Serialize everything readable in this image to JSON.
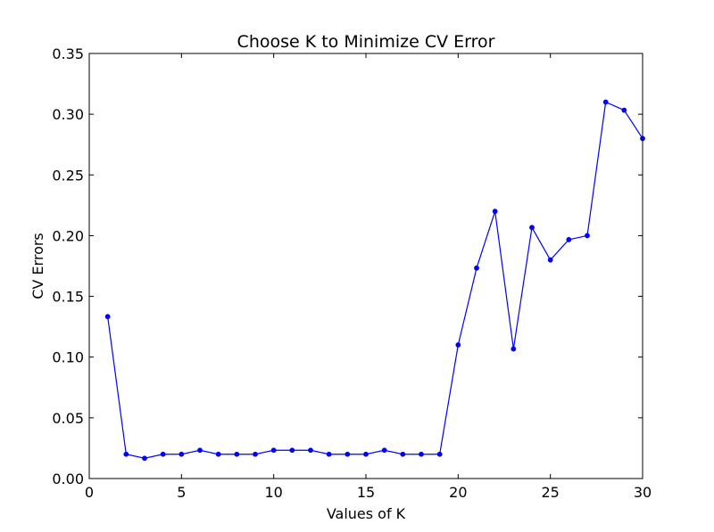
{
  "chart_data": {
    "type": "line",
    "title": "Choose K to Minimize CV Error",
    "xlabel": "Values of K",
    "ylabel": "CV Errors",
    "xlim": [
      0,
      30
    ],
    "ylim": [
      0.0,
      0.35
    ],
    "xticks": [
      0,
      5,
      10,
      15,
      20,
      25,
      30
    ],
    "xtick_labels": [
      "0",
      "5",
      "10",
      "15",
      "20",
      "25",
      "30"
    ],
    "yticks": [
      0.0,
      0.05,
      0.1,
      0.15,
      0.2,
      0.25,
      0.3,
      0.35
    ],
    "ytick_labels": [
      "0.00",
      "0.05",
      "0.10",
      "0.15",
      "0.20",
      "0.25",
      "0.30",
      "0.35"
    ],
    "grid": false,
    "legend": "none",
    "series": [
      {
        "color": "#0000ff",
        "x": [
          1,
          2,
          3,
          4,
          5,
          6,
          7,
          8,
          9,
          10,
          11,
          12,
          13,
          14,
          15,
          16,
          17,
          18,
          19,
          20,
          21,
          22,
          23,
          24,
          25,
          26,
          27,
          28,
          29,
          30
        ],
        "values": [
          0.1333,
          0.02,
          0.0167,
          0.02,
          0.02,
          0.0233,
          0.02,
          0.02,
          0.02,
          0.0233,
          0.0233,
          0.0233,
          0.02,
          0.02,
          0.02,
          0.0233,
          0.02,
          0.02,
          0.02,
          0.11,
          0.1733,
          0.22,
          0.1067,
          0.2067,
          0.18,
          0.1967,
          0.2,
          0.31,
          0.3033,
          0.28
        ]
      }
    ]
  }
}
